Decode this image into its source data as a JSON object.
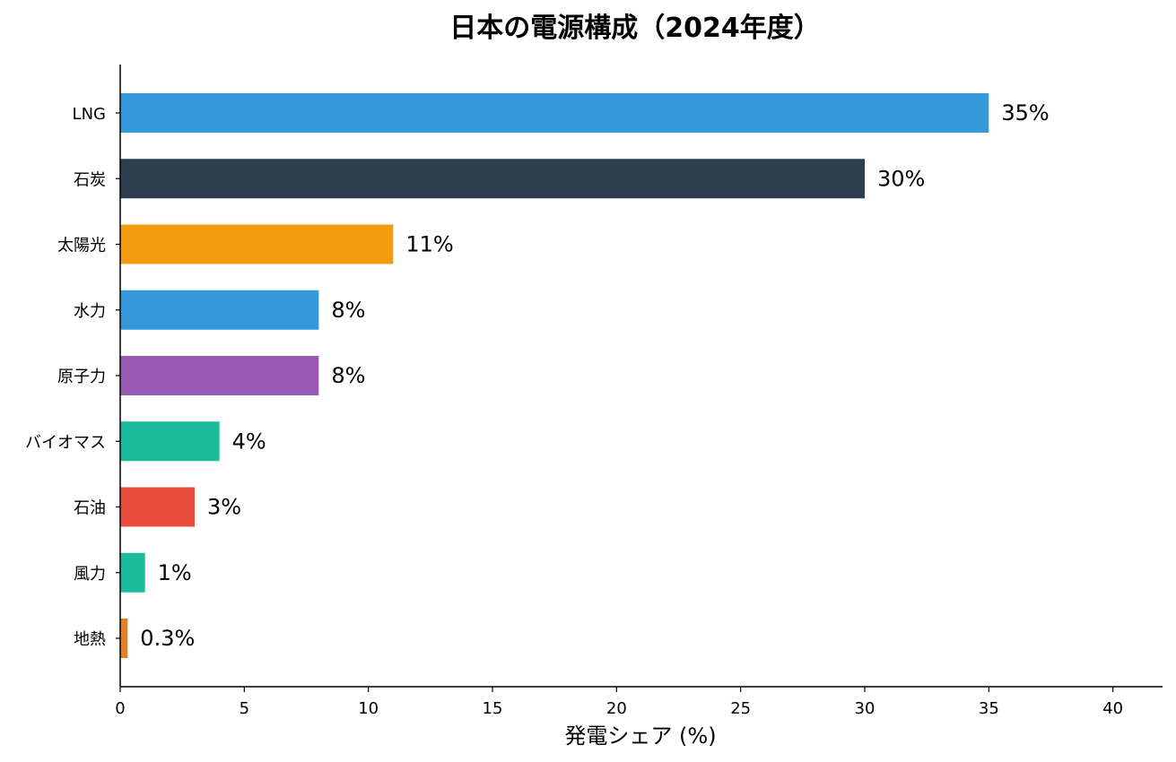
{
  "chart_data": {
    "type": "bar",
    "orientation": "horizontal",
    "title": "日本の電源構成（2024年度）",
    "xlabel": "発電シェア (%)",
    "ylabel": "",
    "xlim": [
      0,
      42
    ],
    "xticks": [
      0,
      5,
      10,
      15,
      20,
      25,
      30,
      35,
      40
    ],
    "grid": false,
    "categories": [
      "LNG",
      "石炭",
      "太陽光",
      "水力",
      "原子力",
      "バイオマス",
      "石油",
      "風力",
      "地熱"
    ],
    "values": [
      35,
      30,
      11,
      8,
      8,
      4,
      3,
      1,
      0.3
    ],
    "labels": [
      "35%",
      "30%",
      "11%",
      "8%",
      "8%",
      "4%",
      "3%",
      "1%",
      "0.3%"
    ],
    "colors": [
      "#3498db",
      "#2c3e50",
      "#f39c12",
      "#3498db",
      "#9b59b6",
      "#1abc9c",
      "#e74c3c",
      "#1abc9c",
      "#e67e22"
    ]
  }
}
